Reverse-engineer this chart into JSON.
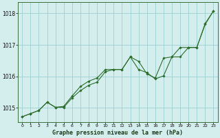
{
  "title": "Graphe pression niveau de la mer (hPa)",
  "background_color": "#d4eeed",
  "grid_color": "#9ecece",
  "line_color": "#2d6e2d",
  "marker_color": "#2d6e2d",
  "xlim": [
    -0.5,
    23.5
  ],
  "ylim": [
    1014.55,
    1018.35
  ],
  "yticks": [
    1015,
    1016,
    1017,
    1018
  ],
  "xticks": [
    0,
    1,
    2,
    3,
    4,
    5,
    6,
    7,
    8,
    9,
    10,
    11,
    12,
    13,
    14,
    15,
    16,
    17,
    18,
    19,
    20,
    21,
    22,
    23
  ],
  "series1_x": [
    0,
    1,
    2,
    3,
    4,
    5,
    6,
    7,
    8,
    9,
    10,
    11,
    12,
    13,
    14,
    15,
    16,
    17,
    18,
    19,
    20,
    21,
    22,
    23
  ],
  "series1_y": [
    1014.72,
    1014.82,
    1014.92,
    1015.18,
    1015.02,
    1015.02,
    1015.32,
    1015.55,
    1015.72,
    1015.82,
    1016.15,
    1016.22,
    1016.22,
    1016.62,
    1016.22,
    1016.12,
    1015.92,
    1016.02,
    1016.62,
    1016.62,
    1016.92,
    1016.92,
    1017.65,
    1018.08
  ],
  "series2_x": [
    0,
    1,
    2,
    3,
    4,
    5,
    6,
    7,
    8,
    9,
    10,
    11,
    12,
    13,
    14,
    15,
    16,
    17,
    18,
    19,
    20,
    21,
    22,
    23
  ],
  "series2_y": [
    1014.72,
    1014.82,
    1014.92,
    1015.18,
    1015.02,
    1015.05,
    1015.38,
    1015.68,
    1015.85,
    1015.95,
    1016.22,
    1016.22,
    1016.22,
    1016.62,
    1016.48,
    1016.08,
    1015.95,
    1016.58,
    1016.62,
    1016.92,
    1016.92,
    1016.92,
    1017.68,
    1018.08
  ]
}
